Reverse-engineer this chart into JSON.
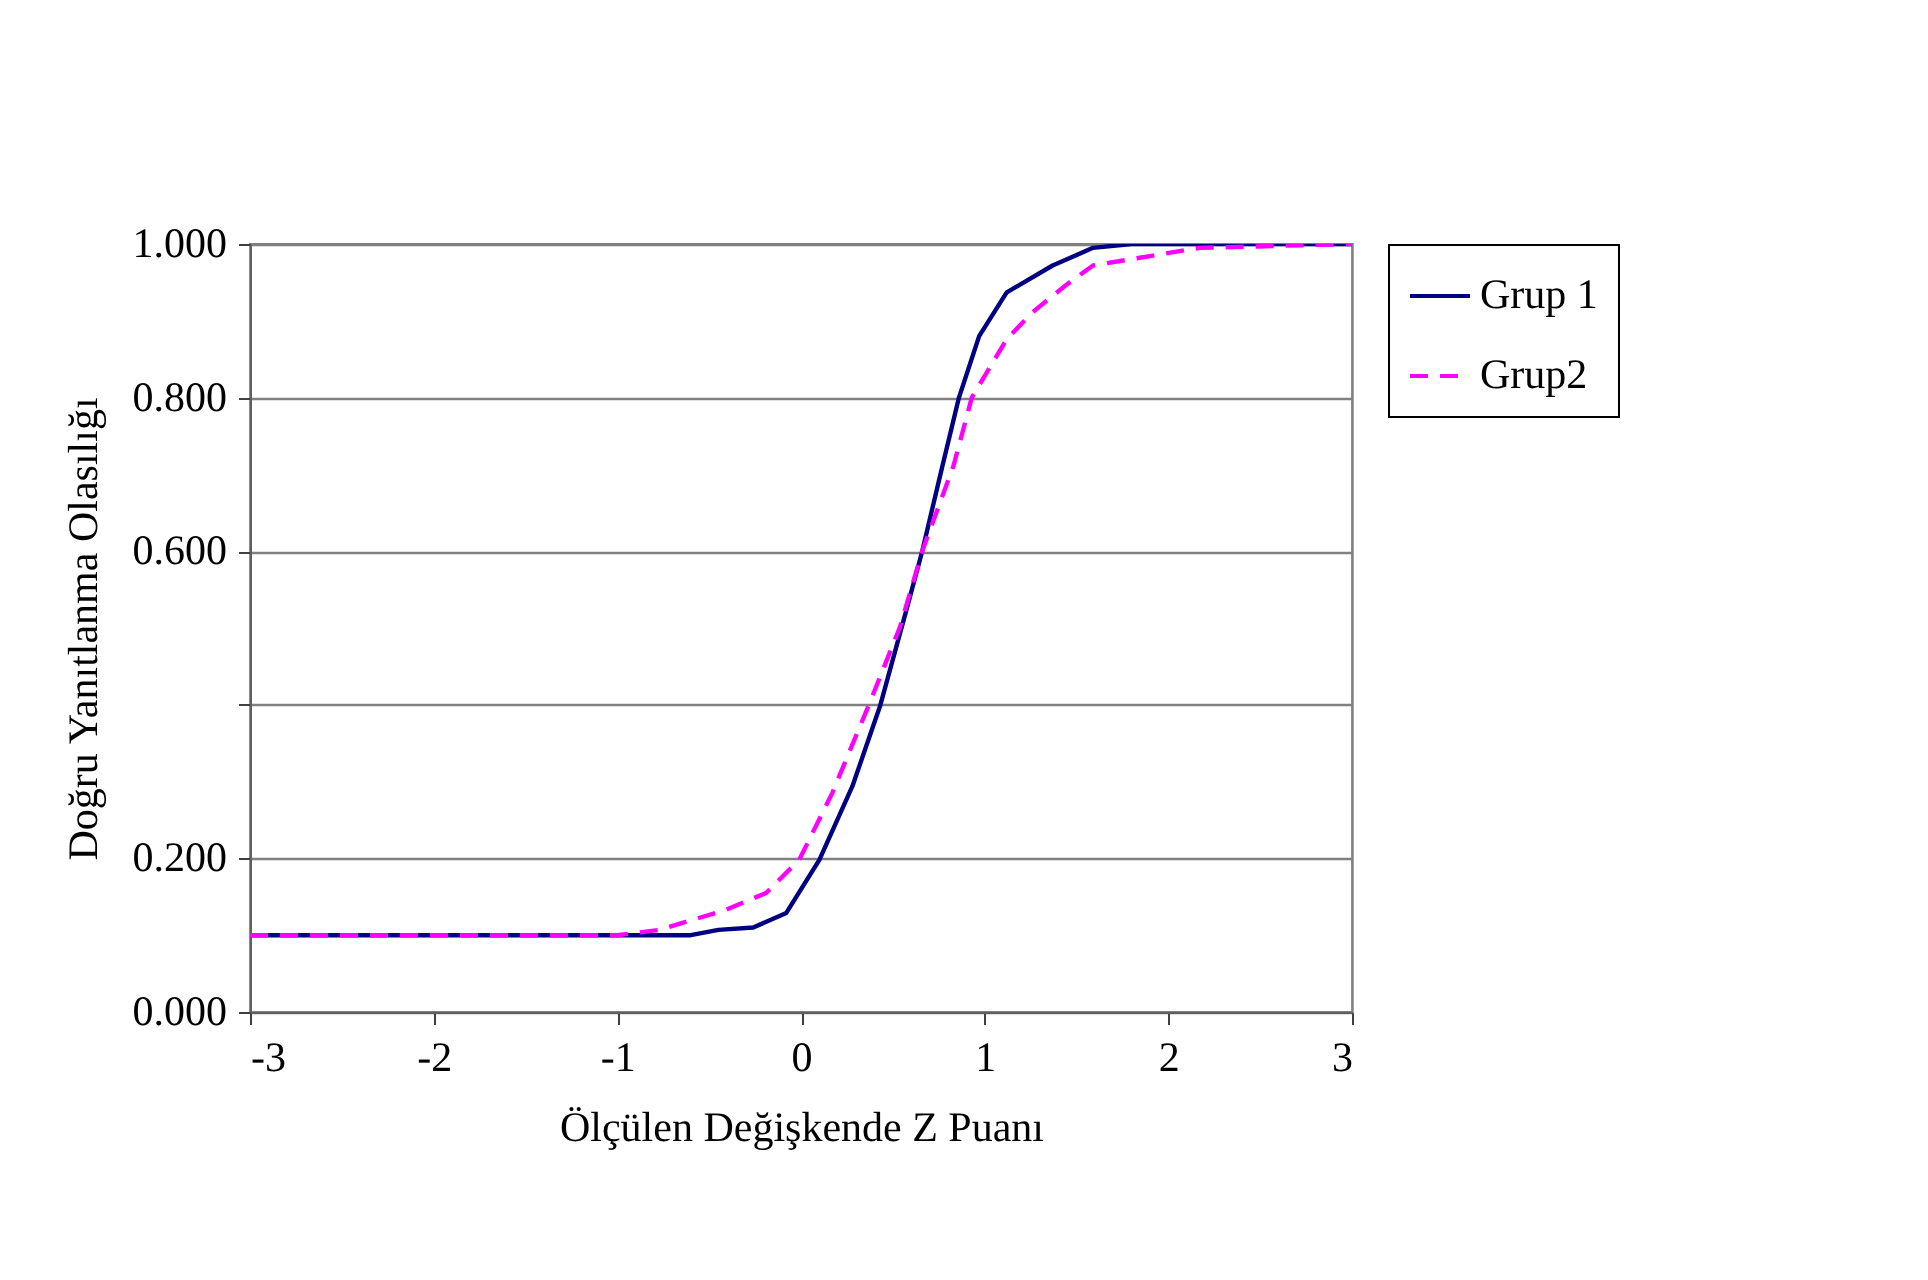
{
  "chart_data": {
    "type": "line",
    "xlabel": "Ölçülen Değişkende Z Puanı",
    "ylabel": "Doğru Yanıtlanma Olasılığı",
    "xlim": [
      -3,
      3
    ],
    "xticks": [
      -3,
      -2,
      -1,
      0,
      1,
      2,
      3
    ],
    "ylim": [
      0,
      1
    ],
    "yticks": [
      {
        "value": 0,
        "label": "0.000"
      },
      {
        "value": 0.2,
        "label": "0.200"
      },
      {
        "value": 0.4,
        "label": null
      },
      {
        "value": 0.6,
        "label": "0.600"
      },
      {
        "value": 0.8,
        "label": "0.800"
      },
      {
        "value": 1,
        "label": "1.000"
      }
    ],
    "grid": "y",
    "legend": "right",
    "marker": "none",
    "series": [
      {
        "name": "Grup 1",
        "color": "#000080",
        "line_style": "solid",
        "x": [
          -3,
          -2,
          -1,
          -0.6,
          -0.45,
          -0.26,
          -0.08,
          0.1,
          0.28,
          0.43,
          0.57,
          0.66,
          0.77,
          0.86,
          0.97,
          1.12,
          1.37,
          1.59,
          1.8,
          3
        ],
        "values": [
          0.1,
          0.1,
          0.1,
          0.1,
          0.107,
          0.11,
          0.129,
          0.198,
          0.294,
          0.398,
          0.52,
          0.6,
          0.711,
          0.8,
          0.88,
          0.937,
          0.972,
          0.995,
          1,
          1
        ]
      },
      {
        "name": "Grup2",
        "color": "#ff00ff",
        "line_style": "dashed",
        "x": [
          -3,
          -2,
          -1,
          -0.77,
          -0.41,
          -0.19,
          -0.01,
          0.17,
          0.37,
          0.54,
          0.66,
          0.83,
          0.93,
          1.12,
          1.26,
          1.44,
          1.59,
          2.17,
          3
        ],
        "values": [
          0.1,
          0.1,
          0.1,
          0.107,
          0.133,
          0.155,
          0.198,
          0.285,
          0.4,
          0.502,
          0.6,
          0.711,
          0.8,
          0.876,
          0.911,
          0.946,
          0.972,
          0.995,
          1
        ]
      }
    ]
  }
}
